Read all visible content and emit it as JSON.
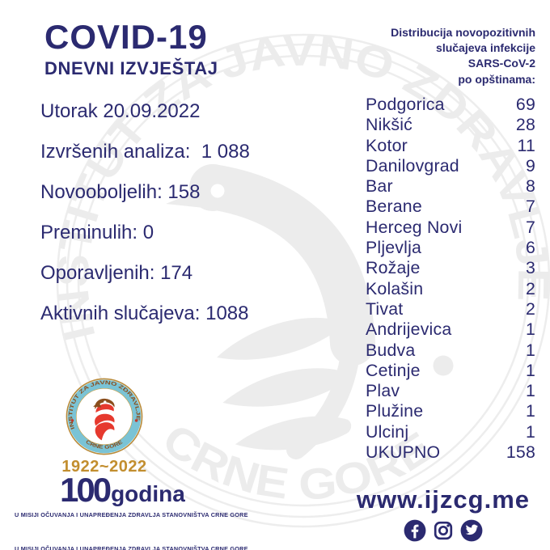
{
  "colors": {
    "navy": "#2b2a70",
    "gold": "#c28e2f",
    "teal": "#7ac3d5",
    "red": "#e6392e",
    "brown": "#8a4e1d",
    "watermark": "#ececec"
  },
  "report": {
    "title": "COVID-19",
    "subtitle": "DNEVNI IZVJEŠTAJ",
    "date": "Utorak 20.09.2022",
    "stats": [
      {
        "label": "Izvršenih analiza:",
        "gap": "  ",
        "value": "1 088"
      },
      {
        "label": "Novooboljelih:",
        "gap": " ",
        "value": "158"
      },
      {
        "label": "Preminulih:",
        "gap": " ",
        "value": "0"
      },
      {
        "label": "Oporavljenih:",
        "gap": " ",
        "value": "174"
      },
      {
        "label": "Aktivnih slučajeva:",
        "gap": " ",
        "value": "1088"
      }
    ]
  },
  "distribution": {
    "heading_lines": [
      "Distribucija novopozitivnih",
      "slučajeva infekcije",
      "SARS-CoV-2",
      "po opštinama:"
    ],
    "municipalities": [
      {
        "name": "Podgorica",
        "value": "69"
      },
      {
        "name": "Nikšić",
        "value": "28"
      },
      {
        "name": "Kotor",
        "value": "11"
      },
      {
        "name": "Danilovgrad",
        "value": "9"
      },
      {
        "name": "Bar",
        "value": "8"
      },
      {
        "name": "Berane",
        "value": "7"
      },
      {
        "name": "Herceg Novi",
        "value": "7"
      },
      {
        "name": "Pljevlja",
        "value": "6"
      },
      {
        "name": "Rožaje",
        "value": "3"
      },
      {
        "name": "Kolašin",
        "value": "2"
      },
      {
        "name": "Tivat",
        "value": "2"
      },
      {
        "name": "Andrijevica",
        "value": "1"
      },
      {
        "name": "Budva",
        "value": "1"
      },
      {
        "name": "Cetinje",
        "value": "1"
      },
      {
        "name": "Plav",
        "value": "1"
      },
      {
        "name": "Plužine",
        "value": "1"
      },
      {
        "name": "Ulcinj",
        "value": "1"
      },
      {
        "name": "UKUPNO",
        "value": "158",
        "is_total": true
      }
    ]
  },
  "watermark": {
    "arc_top": "INSTITUT ZA JAVNO ZDRAVLJE",
    "arc_bottom": "CRNE GORE"
  },
  "badge": {
    "arc_top": "INSTITUT ZA JAVNO ZDRAVLJE",
    "arc_bottom": "CRNE GORE",
    "years": "1922~2022"
  },
  "centenary": {
    "number": "100",
    "word": "godina"
  },
  "footer": {
    "tagline": "U MISIJI OČUVANJA I UNAPREĐENJA ZDRAVLJA STANOVNIŠTVA CRNE GORE",
    "website": "www.ijzcg.me",
    "social": [
      "facebook",
      "instagram",
      "twitter"
    ]
  }
}
